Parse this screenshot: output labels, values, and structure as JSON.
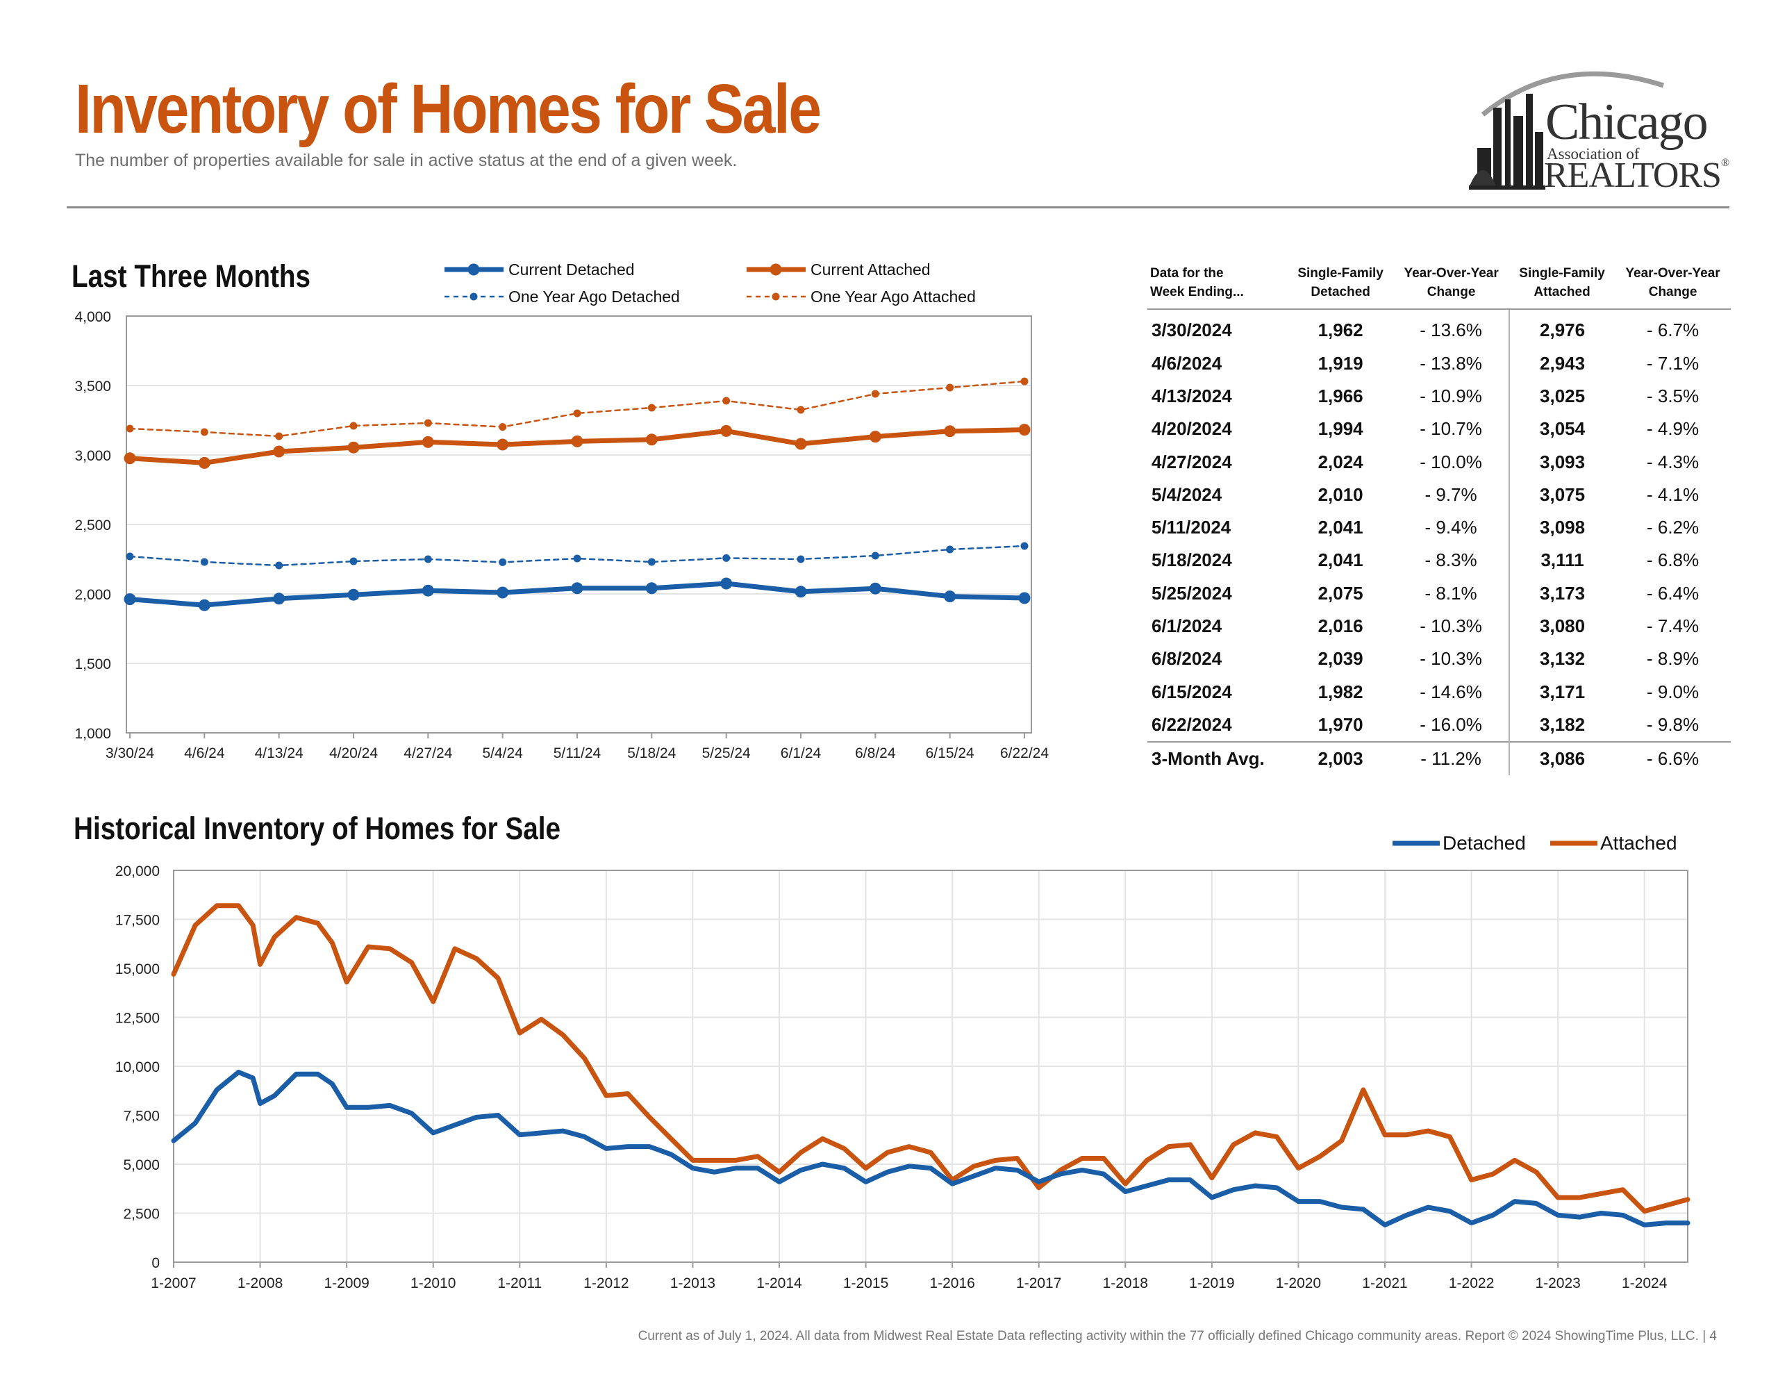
{
  "header": {
    "title": "Inventory of Homes for Sale",
    "subtitle": "The number of properties available for sale in active status at the end of a given week."
  },
  "logo": {
    "line1": "Chicago",
    "line2": "Association of",
    "line3": "REALTORS",
    "mark": "®"
  },
  "colors": {
    "detached": "#1b5ea8",
    "attached": "#c8540f",
    "grid": "#e4e4e4"
  },
  "chart_data": [
    {
      "type": "line",
      "title": "Last Three Months",
      "categories": [
        "3/30/24",
        "4/6/24",
        "4/13/24",
        "4/20/24",
        "4/27/24",
        "5/4/24",
        "5/11/24",
        "5/18/24",
        "5/25/24",
        "6/1/24",
        "6/8/24",
        "6/15/24",
        "6/22/24"
      ],
      "ylim": [
        1000,
        4000
      ],
      "yticks": [
        "1,000",
        "1,500",
        "2,000",
        "2,500",
        "3,000",
        "3,500",
        "4,000"
      ],
      "grid": true,
      "legend_position": "top",
      "series": [
        {
          "name": "Current Detached",
          "style": "solid",
          "color": "#1b5ea8",
          "values": [
            1962,
            1919,
            1966,
            1994,
            2024,
            2010,
            2041,
            2041,
            2075,
            2016,
            2039,
            1982,
            1970
          ]
        },
        {
          "name": "Current Attached",
          "style": "solid",
          "color": "#c8540f",
          "values": [
            2976,
            2943,
            3025,
            3054,
            3093,
            3075,
            3098,
            3111,
            3173,
            3080,
            3132,
            3171,
            3182
          ]
        },
        {
          "name": "One Year Ago Detached",
          "style": "dashed",
          "color": "#1b5ea8",
          "values": [
            2270,
            2230,
            2205,
            2235,
            2250,
            2228,
            2255,
            2230,
            2258,
            2250,
            2275,
            2320,
            2345
          ]
        },
        {
          "name": "One Year Ago Attached",
          "style": "dashed",
          "color": "#c8540f",
          "values": [
            3190,
            3165,
            3135,
            3210,
            3230,
            3202,
            3300,
            3340,
            3390,
            3325,
            3440,
            3485,
            3530
          ]
        }
      ]
    },
    {
      "type": "line",
      "title": "Historical Inventory of Homes for Sale",
      "x_type": "date",
      "xticks": [
        "1-2007",
        "1-2008",
        "1-2009",
        "1-2010",
        "1-2011",
        "1-2012",
        "1-2013",
        "1-2014",
        "1-2015",
        "1-2016",
        "1-2017",
        "1-2018",
        "1-2019",
        "1-2020",
        "1-2021",
        "1-2022",
        "1-2023",
        "1-2024"
      ],
      "yticks": [
        "0",
        "2,500",
        "5,000",
        "7,500",
        "10,000",
        "12,500",
        "15,000",
        "17,500",
        "20,000"
      ],
      "ylim": [
        0,
        20000
      ],
      "xlim": [
        "2007-01",
        "2024-07"
      ],
      "grid": true,
      "legend_position": "top-right",
      "series": [
        {
          "name": "Detached",
          "color": "#1b5ea8",
          "points": [
            [
              "2007-01",
              6200
            ],
            [
              "2007-04",
              7100
            ],
            [
              "2007-07",
              8800
            ],
            [
              "2007-10",
              9700
            ],
            [
              "2007-12",
              9400
            ],
            [
              "2008-01",
              8100
            ],
            [
              "2008-03",
              8500
            ],
            [
              "2008-06",
              9600
            ],
            [
              "2008-09",
              9600
            ],
            [
              "2008-11",
              9100
            ],
            [
              "2009-01",
              7900
            ],
            [
              "2009-04",
              7900
            ],
            [
              "2009-07",
              8000
            ],
            [
              "2009-10",
              7600
            ],
            [
              "2010-01",
              6600
            ],
            [
              "2010-04",
              7000
            ],
            [
              "2010-07",
              7400
            ],
            [
              "2010-10",
              7500
            ],
            [
              "2011-01",
              6500
            ],
            [
              "2011-04",
              6600
            ],
            [
              "2011-07",
              6700
            ],
            [
              "2011-10",
              6400
            ],
            [
              "2012-01",
              5800
            ],
            [
              "2012-04",
              5900
            ],
            [
              "2012-07",
              5900
            ],
            [
              "2012-10",
              5500
            ],
            [
              "2013-01",
              4800
            ],
            [
              "2013-04",
              4600
            ],
            [
              "2013-07",
              4800
            ],
            [
              "2013-10",
              4800
            ],
            [
              "2014-01",
              4100
            ],
            [
              "2014-04",
              4700
            ],
            [
              "2014-07",
              5000
            ],
            [
              "2014-10",
              4800
            ],
            [
              "2015-01",
              4100
            ],
            [
              "2015-04",
              4600
            ],
            [
              "2015-07",
              4900
            ],
            [
              "2015-10",
              4800
            ],
            [
              "2016-01",
              4000
            ],
            [
              "2016-04",
              4400
            ],
            [
              "2016-07",
              4800
            ],
            [
              "2016-10",
              4700
            ],
            [
              "2017-01",
              4100
            ],
            [
              "2017-04",
              4500
            ],
            [
              "2017-07",
              4700
            ],
            [
              "2017-10",
              4500
            ],
            [
              "2018-01",
              3600
            ],
            [
              "2018-04",
              3900
            ],
            [
              "2018-07",
              4200
            ],
            [
              "2018-10",
              4200
            ],
            [
              "2019-01",
              3300
            ],
            [
              "2019-04",
              3700
            ],
            [
              "2019-07",
              3900
            ],
            [
              "2019-10",
              3800
            ],
            [
              "2020-01",
              3100
            ],
            [
              "2020-04",
              3100
            ],
            [
              "2020-07",
              2800
            ],
            [
              "2020-10",
              2700
            ],
            [
              "2021-01",
              1900
            ],
            [
              "2021-04",
              2400
            ],
            [
              "2021-07",
              2800
            ],
            [
              "2021-10",
              2600
            ],
            [
              "2022-01",
              2000
            ],
            [
              "2022-04",
              2400
            ],
            [
              "2022-07",
              3100
            ],
            [
              "2022-10",
              3000
            ],
            [
              "2023-01",
              2400
            ],
            [
              "2023-04",
              2300
            ],
            [
              "2023-07",
              2500
            ],
            [
              "2023-10",
              2400
            ],
            [
              "2024-01",
              1900
            ],
            [
              "2024-04",
              2000
            ],
            [
              "2024-07",
              2000
            ]
          ]
        },
        {
          "name": "Attached",
          "color": "#c8540f",
          "points": [
            [
              "2007-01",
              14700
            ],
            [
              "2007-04",
              17200
            ],
            [
              "2007-07",
              18200
            ],
            [
              "2007-10",
              18200
            ],
            [
              "2007-12",
              17200
            ],
            [
              "2008-01",
              15200
            ],
            [
              "2008-03",
              16600
            ],
            [
              "2008-06",
              17600
            ],
            [
              "2008-09",
              17300
            ],
            [
              "2008-11",
              16300
            ],
            [
              "2009-01",
              14300
            ],
            [
              "2009-04",
              16100
            ],
            [
              "2009-07",
              16000
            ],
            [
              "2009-10",
              15300
            ],
            [
              "2010-01",
              13300
            ],
            [
              "2010-04",
              16000
            ],
            [
              "2010-07",
              15500
            ],
            [
              "2010-10",
              14500
            ],
            [
              "2011-01",
              11700
            ],
            [
              "2011-04",
              12400
            ],
            [
              "2011-07",
              11600
            ],
            [
              "2011-10",
              10400
            ],
            [
              "2012-01",
              8500
            ],
            [
              "2012-04",
              8600
            ],
            [
              "2012-07",
              7400
            ],
            [
              "2012-10",
              6300
            ],
            [
              "2013-01",
              5200
            ],
            [
              "2013-04",
              5200
            ],
            [
              "2013-07",
              5200
            ],
            [
              "2013-10",
              5400
            ],
            [
              "2014-01",
              4600
            ],
            [
              "2014-04",
              5600
            ],
            [
              "2014-07",
              6300
            ],
            [
              "2014-10",
              5800
            ],
            [
              "2015-01",
              4800
            ],
            [
              "2015-04",
              5600
            ],
            [
              "2015-07",
              5900
            ],
            [
              "2015-10",
              5600
            ],
            [
              "2016-01",
              4200
            ],
            [
              "2016-04",
              4900
            ],
            [
              "2016-07",
              5200
            ],
            [
              "2016-10",
              5300
            ],
            [
              "2017-01",
              3800
            ],
            [
              "2017-04",
              4700
            ],
            [
              "2017-07",
              5300
            ],
            [
              "2017-10",
              5300
            ],
            [
              "2018-01",
              4000
            ],
            [
              "2018-04",
              5200
            ],
            [
              "2018-07",
              5900
            ],
            [
              "2018-10",
              6000
            ],
            [
              "2019-01",
              4300
            ],
            [
              "2019-04",
              6000
            ],
            [
              "2019-07",
              6600
            ],
            [
              "2019-10",
              6400
            ],
            [
              "2020-01",
              4800
            ],
            [
              "2020-04",
              5400
            ],
            [
              "2020-07",
              6200
            ],
            [
              "2020-10",
              8800
            ],
            [
              "2021-01",
              6500
            ],
            [
              "2021-04",
              6500
            ],
            [
              "2021-07",
              6700
            ],
            [
              "2021-10",
              6400
            ],
            [
              "2022-01",
              4200
            ],
            [
              "2022-04",
              4500
            ],
            [
              "2022-07",
              5200
            ],
            [
              "2022-10",
              4600
            ],
            [
              "2023-01",
              3300
            ],
            [
              "2023-04",
              3300
            ],
            [
              "2023-07",
              3500
            ],
            [
              "2023-10",
              3700
            ],
            [
              "2024-01",
              2600
            ],
            [
              "2024-04",
              2900
            ],
            [
              "2024-07",
              3200
            ]
          ]
        }
      ]
    }
  ],
  "table": {
    "headers": [
      [
        "Data for the",
        "Week Ending..."
      ],
      [
        "Single-Family",
        "Detached"
      ],
      [
        "Year-Over-Year",
        "Change"
      ],
      [
        "Single-Family",
        "Attached"
      ],
      [
        "Year-Over-Year",
        "Change"
      ]
    ],
    "rows": [
      [
        "3/30/2024",
        "1,962",
        "- 13.6%",
        "2,976",
        "- 6.7%"
      ],
      [
        "4/6/2024",
        "1,919",
        "- 13.8%",
        "2,943",
        "- 7.1%"
      ],
      [
        "4/13/2024",
        "1,966",
        "- 10.9%",
        "3,025",
        "- 3.5%"
      ],
      [
        "4/20/2024",
        "1,994",
        "- 10.7%",
        "3,054",
        "- 4.9%"
      ],
      [
        "4/27/2024",
        "2,024",
        "- 10.0%",
        "3,093",
        "- 4.3%"
      ],
      [
        "5/4/2024",
        "2,010",
        "- 9.7%",
        "3,075",
        "- 4.1%"
      ],
      [
        "5/11/2024",
        "2,041",
        "- 9.4%",
        "3,098",
        "- 6.2%"
      ],
      [
        "5/18/2024",
        "2,041",
        "- 8.3%",
        "3,111",
        "- 6.8%"
      ],
      [
        "5/25/2024",
        "2,075",
        "- 8.1%",
        "3,173",
        "- 6.4%"
      ],
      [
        "6/1/2024",
        "2,016",
        "- 10.3%",
        "3,080",
        "- 7.4%"
      ],
      [
        "6/8/2024",
        "2,039",
        "- 10.3%",
        "3,132",
        "- 8.9%"
      ],
      [
        "6/15/2024",
        "1,982",
        "- 14.6%",
        "3,171",
        "- 9.0%"
      ],
      [
        "6/22/2024",
        "1,970",
        "- 16.0%",
        "3,182",
        "- 9.8%"
      ]
    ],
    "average": [
      "3-Month Avg.",
      "2,003",
      "- 11.2%",
      "3,086",
      "- 6.6%"
    ]
  },
  "footer": "Current as of July 1, 2024.  All data from Midwest Real Estate Data reflecting activity within the 77 officially defined Chicago community areas. Report © 2024 ShowingTime Plus, LLC.  |  4"
}
